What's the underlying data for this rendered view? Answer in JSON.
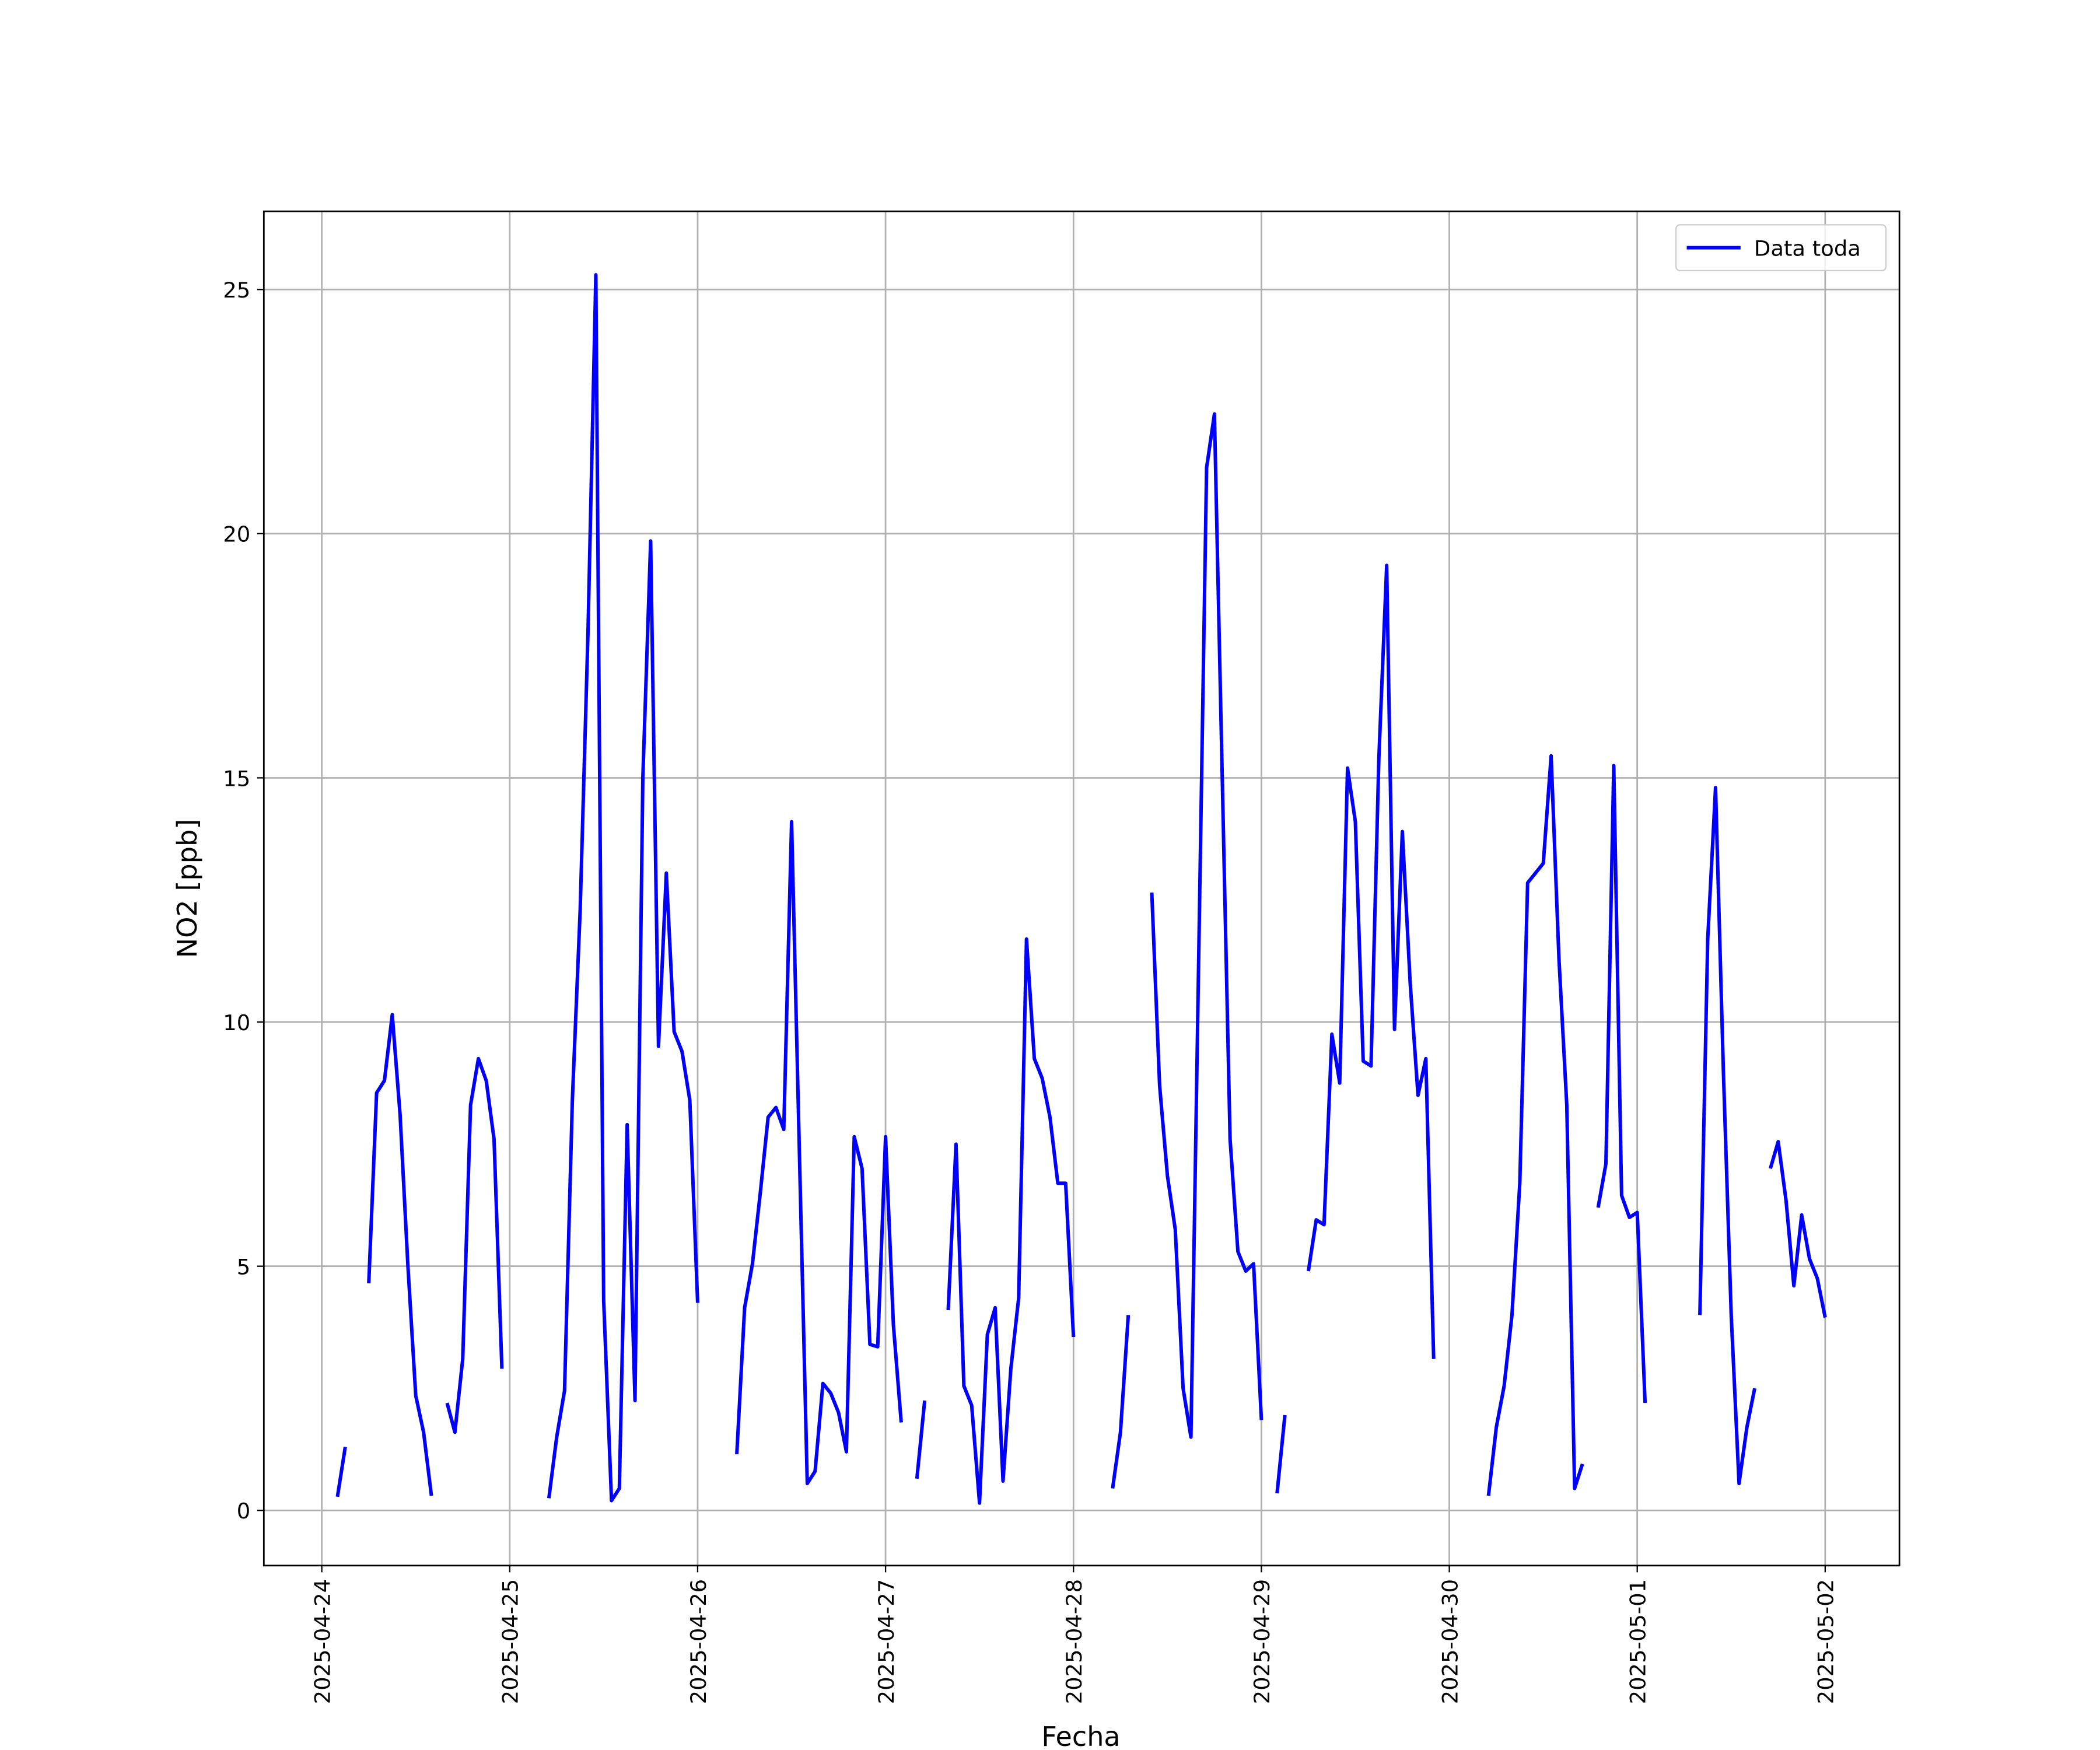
{
  "chart_data": {
    "type": "line",
    "x_label": "Fecha",
    "y_label": "NO2 [ppb]",
    "xlim": [
      "2025-04-23 16:36",
      "2025-05-02 09:29"
    ],
    "xticks": [
      "2025-04-24",
      "2025-04-25",
      "2025-04-26",
      "2025-04-27",
      "2025-04-28",
      "2025-04-29",
      "2025-04-30",
      "2025-05-01",
      "2025-05-02"
    ],
    "ylim": [
      -1.13,
      26.6
    ],
    "yticks": [
      0,
      5,
      10,
      15,
      20,
      25
    ],
    "grid": true,
    "legend": "upper right",
    "x": [
      "2025-04-24 02:00",
      "2025-04-24 03:00",
      "2025-04-24 04:00",
      "2025-04-24 06:00",
      "2025-04-24 07:00",
      "2025-04-24 08:00",
      "2025-04-24 09:00",
      "2025-04-24 10:00",
      "2025-04-24 11:00",
      "2025-04-24 12:00",
      "2025-04-24 13:00",
      "2025-04-24 14:00",
      "2025-04-24 15:00",
      "2025-04-24 16:00",
      "2025-04-24 17:00",
      "2025-04-24 18:00",
      "2025-04-24 19:00",
      "2025-04-24 20:00",
      "2025-04-24 21:00",
      "2025-04-24 22:00",
      "2025-04-24 23:00",
      "2025-04-25 00:00",
      "2025-04-25 05:00",
      "2025-04-25 06:00",
      "2025-04-25 07:00",
      "2025-04-25 08:00",
      "2025-04-25 09:00",
      "2025-04-25 10:00",
      "2025-04-25 11:00",
      "2025-04-25 12:00",
      "2025-04-25 13:00",
      "2025-04-25 14:00",
      "2025-04-25 15:00",
      "2025-04-25 16:00",
      "2025-04-25 17:00",
      "2025-04-25 18:00",
      "2025-04-25 19:00",
      "2025-04-25 20:00",
      "2025-04-25 21:00",
      "2025-04-25 22:00",
      "2025-04-25 23:00",
      "2025-04-26 00:00",
      "2025-04-26 01:00",
      "2025-04-26 05:00",
      "2025-04-26 06:00",
      "2025-04-26 07:00",
      "2025-04-26 08:00",
      "2025-04-26 09:00",
      "2025-04-26 10:00",
      "2025-04-26 11:00",
      "2025-04-26 12:00",
      "2025-04-26 13:00",
      "2025-04-26 14:00",
      "2025-04-26 15:00",
      "2025-04-26 16:00",
      "2025-04-26 17:00",
      "2025-04-26 18:00",
      "2025-04-26 19:00",
      "2025-04-26 20:00",
      "2025-04-26 21:00",
      "2025-04-26 22:00",
      "2025-04-26 23:00",
      "2025-04-27 00:00",
      "2025-04-27 01:00",
      "2025-04-27 02:00",
      "2025-04-27 03:00",
      "2025-04-27 04:00",
      "2025-04-27 05:00",
      "2025-04-27 06:00",
      "2025-04-27 08:00",
      "2025-04-27 09:00",
      "2025-04-27 10:00",
      "2025-04-27 11:00",
      "2025-04-27 12:00",
      "2025-04-27 13:00",
      "2025-04-27 14:00",
      "2025-04-27 15:00",
      "2025-04-27 16:00",
      "2025-04-27 17:00",
      "2025-04-27 18:00",
      "2025-04-27 19:00",
      "2025-04-27 20:00",
      "2025-04-27 21:00",
      "2025-04-27 22:00",
      "2025-04-27 23:00",
      "2025-04-28 00:00",
      "2025-04-28 01:00",
      "2025-04-28 05:00",
      "2025-04-28 06:00",
      "2025-04-28 07:00",
      "2025-04-28 08:00",
      "2025-04-28 10:00",
      "2025-04-28 11:00",
      "2025-04-28 12:00",
      "2025-04-28 13:00",
      "2025-04-28 14:00",
      "2025-04-28 15:00",
      "2025-04-28 16:00",
      "2025-04-28 17:00",
      "2025-04-28 18:00",
      "2025-04-28 19:00",
      "2025-04-28 20:00",
      "2025-04-28 21:00",
      "2025-04-28 22:00",
      "2025-04-28 23:00",
      "2025-04-29 00:00",
      "2025-04-29 01:00",
      "2025-04-29 02:00",
      "2025-04-29 03:00",
      "2025-04-29 04:00",
      "2025-04-29 06:00",
      "2025-04-29 07:00",
      "2025-04-29 08:00",
      "2025-04-29 09:00",
      "2025-04-29 10:00",
      "2025-04-29 11:00",
      "2025-04-29 12:00",
      "2025-04-29 13:00",
      "2025-04-29 14:00",
      "2025-04-29 15:00",
      "2025-04-29 16:00",
      "2025-04-29 17:00",
      "2025-04-29 18:00",
      "2025-04-29 19:00",
      "2025-04-29 20:00",
      "2025-04-29 21:00",
      "2025-04-29 22:00",
      "2025-04-29 23:00",
      "2025-04-30 05:00",
      "2025-04-30 06:00",
      "2025-04-30 07:00",
      "2025-04-30 08:00",
      "2025-04-30 09:00",
      "2025-04-30 10:00",
      "2025-04-30 11:00",
      "2025-04-30 12:00",
      "2025-04-30 13:00",
      "2025-04-30 14:00",
      "2025-04-30 15:00",
      "2025-04-30 16:00",
      "2025-04-30 17:00",
      "2025-04-30 18:00",
      "2025-04-30 19:00",
      "2025-04-30 20:00",
      "2025-04-30 21:00",
      "2025-04-30 22:00",
      "2025-04-30 23:00",
      "2025-05-01 00:00",
      "2025-05-01 01:00",
      "2025-05-01 02:00",
      "2025-05-01 08:00",
      "2025-05-01 09:00",
      "2025-05-01 10:00",
      "2025-05-01 11:00",
      "2025-05-01 12:00",
      "2025-05-01 13:00",
      "2025-05-01 14:00",
      "2025-05-01 15:00",
      "2025-05-01 16:00",
      "2025-05-01 17:00",
      "2025-05-01 18:00",
      "2025-05-01 19:00",
      "2025-05-01 20:00",
      "2025-05-01 21:00",
      "2025-05-01 22:00",
      "2025-05-01 23:00",
      "2025-05-02 00:00"
    ],
    "series": [
      {
        "name": "Data toda",
        "color": "#0000ff",
        "values": [
          0.28,
          1.3,
          null,
          4.65,
          8.55,
          8.8,
          10.15,
          8.1,
          5.0,
          2.35,
          1.6,
          0.3,
          null,
          2.2,
          1.6,
          3.1,
          8.3,
          9.25,
          8.8,
          7.6,
          2.9,
          null,
          0.25,
          1.5,
          2.45,
          8.4,
          12.3,
          18,
          25.3,
          4.3,
          0.2,
          0.45,
          7.9,
          2.25,
          15,
          19.85,
          9.5,
          13.05,
          9.8,
          9.4,
          8.4,
          4.25,
          null,
          1.15,
          4.15,
          5.05,
          6.5,
          8.05,
          8.25,
          7.8,
          14.1,
          7.3,
          0.55,
          0.8,
          2.6,
          2.4,
          2.0,
          1.2,
          7.65,
          7.0,
          3.4,
          3.35,
          7.65,
          3.8,
          1.8,
          null,
          0.65,
          2.25,
          null,
          4.1,
          7.5,
          2.55,
          2.15,
          0.15,
          3.6,
          4.15,
          0.6,
          2.9,
          4.35,
          11.7,
          9.25,
          8.85,
          8.05,
          6.7,
          6.7,
          3.55,
          null,
          0.45,
          1.6,
          4.0,
          null,
          12.65,
          8.7,
          6.85,
          5.75,
          2.5,
          1.5,
          11.4,
          21.35,
          22.45,
          15,
          7.6,
          5.3,
          4.9,
          5.05,
          1.85,
          null,
          0.35,
          1.95,
          null,
          4.9,
          5.95,
          5.85,
          9.75,
          8.75,
          15.2,
          14.1,
          9.2,
          9.1,
          15.4,
          19.35,
          9.85,
          13.9,
          10.8,
          8.5,
          9.25,
          3.1,
          null,
          0.3,
          1.7,
          2.55,
          4.0,
          6.7,
          12.85,
          13.05,
          13.25,
          15.45,
          11.3,
          8.3,
          0.45,
          0.95,
          null,
          6.2,
          7.1,
          15.25,
          6.45,
          6.0,
          6.1,
          2.2,
          null,
          4.0,
          11.7,
          14.8,
          9.0,
          4.0,
          0.55,
          1.7,
          2.5,
          null,
          7.0,
          7.55,
          6.35,
          4.6,
          6.05,
          5.15,
          4.75,
          3.95
        ]
      }
    ]
  }
}
